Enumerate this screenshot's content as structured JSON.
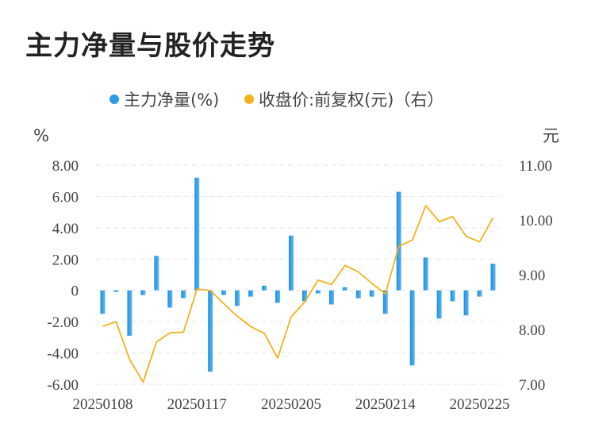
{
  "chart_data": {
    "type": "bar",
    "title": "主力净量与股价走势",
    "legend": [
      {
        "name": "主力净量(%)",
        "color": "#2f9be8"
      },
      {
        "name": "收盘价:前复权(元)（右）",
        "color": "#f2b21a"
      }
    ],
    "left_unit": "%",
    "right_unit": "元",
    "left_ylim": [
      -6,
      8
    ],
    "right_ylim": [
      7,
      11
    ],
    "left_ticks": [
      "8.00",
      "6.00",
      "4.00",
      "2.00",
      "0",
      "-2.00",
      "-4.00",
      "-6.00"
    ],
    "left_tick_values": [
      8,
      6,
      4,
      2,
      0,
      -2,
      -4,
      -6
    ],
    "right_ticks": [
      "11.00",
      "10.00",
      "9.00",
      "8.00",
      "7.00"
    ],
    "right_tick_values": [
      11,
      10,
      9,
      8,
      7
    ],
    "x_labels": [
      "20250108",
      "20250117",
      "20250205",
      "20250214",
      "20250225"
    ],
    "x_label_indices": [
      0,
      7,
      14,
      21,
      28
    ],
    "series": [
      {
        "name": "主力净量(%)",
        "kind": "bar",
        "axis": "left",
        "color": "#2f9be8",
        "values": [
          -1.5,
          -0.1,
          -2.9,
          -0.3,
          2.2,
          -1.1,
          -0.5,
          7.2,
          -5.2,
          -0.3,
          -1.0,
          -0.4,
          0.3,
          -0.8,
          3.5,
          -0.7,
          -0.2,
          -0.9,
          0.2,
          -0.5,
          -0.4,
          -1.5,
          6.3,
          -4.8,
          2.1,
          -1.8,
          -0.7,
          -1.6,
          -0.4,
          1.7
        ]
      },
      {
        "name": "收盘价:前复权(元)（右）",
        "kind": "line",
        "axis": "right",
        "color": "#f2b21a",
        "values": [
          8.06,
          8.14,
          7.45,
          7.04,
          7.77,
          7.94,
          7.95,
          8.74,
          8.71,
          8.47,
          8.24,
          8.05,
          7.93,
          7.48,
          8.23,
          8.5,
          8.9,
          8.82,
          9.17,
          9.05,
          8.84,
          8.65,
          9.52,
          9.63,
          10.26,
          9.97,
          10.06,
          9.7,
          9.6,
          10.04
        ]
      }
    ],
    "grid": true
  }
}
